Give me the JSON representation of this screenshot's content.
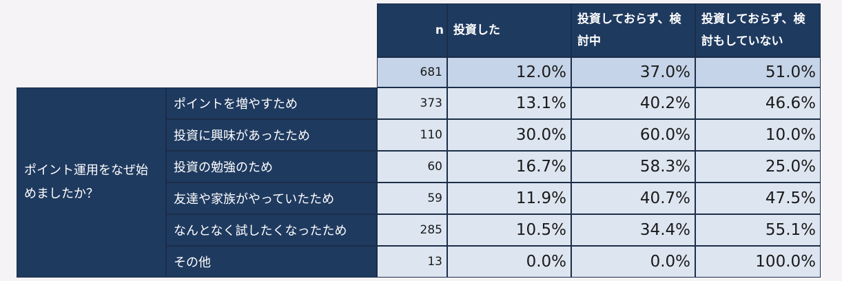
{
  "chart_data": {
    "type": "table",
    "group_label": "ポイント運用をなぜ始めましたか？",
    "header": {
      "n_label": "n",
      "columns": [
        "投資した",
        "投資しておらず、検討中",
        "投資しておらず、検討もしていない"
      ]
    },
    "total": {
      "n": "681",
      "values": [
        "12.0%",
        "37.0%",
        "51.0%"
      ]
    },
    "rows": [
      {
        "label": "ポイントを増やすため",
        "n": "373",
        "values": [
          "13.1%",
          "40.2%",
          "46.6%"
        ]
      },
      {
        "label": "投資に興味があったため",
        "n": "110",
        "values": [
          "30.0%",
          "60.0%",
          "10.0%"
        ]
      },
      {
        "label": "投資の勉強のため",
        "n": "60",
        "values": [
          "16.7%",
          "58.3%",
          "25.0%"
        ]
      },
      {
        "label": "友達や家族がやっていたため",
        "n": "59",
        "values": [
          "11.9%",
          "40.7%",
          "47.5%"
        ]
      },
      {
        "label": "なんとなく試したくなったため",
        "n": "285",
        "values": [
          "10.5%",
          "34.4%",
          "55.1%"
        ]
      },
      {
        "label": "その他",
        "n": "13",
        "values": [
          "0.0%",
          "0.0%",
          "100.0%"
        ]
      }
    ]
  }
}
